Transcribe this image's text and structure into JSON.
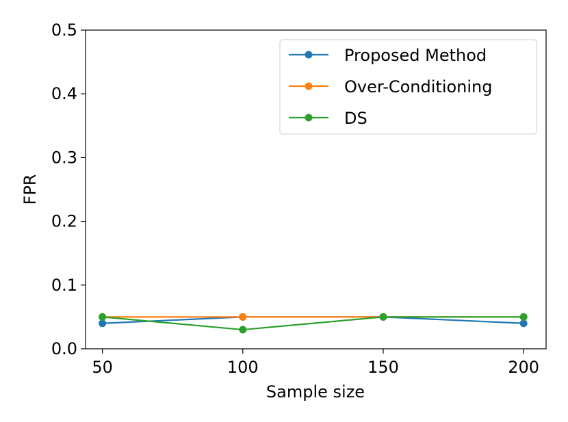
{
  "chart_data": {
    "type": "line",
    "title": "",
    "xlabel": "Sample size",
    "ylabel": "FPR",
    "x": [
      50,
      100,
      150,
      200
    ],
    "xlim": [
      44,
      208
    ],
    "ylim": [
      0.0,
      0.5
    ],
    "xticks": [
      50,
      100,
      150,
      200
    ],
    "xtick_labels": [
      "50",
      "100",
      "150",
      "200"
    ],
    "yticks": [
      0.0,
      0.1,
      0.2,
      0.3,
      0.4,
      0.5
    ],
    "ytick_labels": [
      "0.0",
      "0.1",
      "0.2",
      "0.3",
      "0.4",
      "0.5"
    ],
    "grid": false,
    "legend_position": "top-right",
    "series": [
      {
        "name": "Proposed Method",
        "color": "#1f77b4",
        "values": [
          0.04,
          0.05,
          0.05,
          0.04
        ]
      },
      {
        "name": "Over-Conditioning",
        "color": "#ff7f0e",
        "values": [
          0.05,
          0.05,
          0.05,
          0.05
        ]
      },
      {
        "name": "DS",
        "color": "#2ca02c",
        "values": [
          0.05,
          0.03,
          0.05,
          0.05
        ]
      }
    ]
  }
}
